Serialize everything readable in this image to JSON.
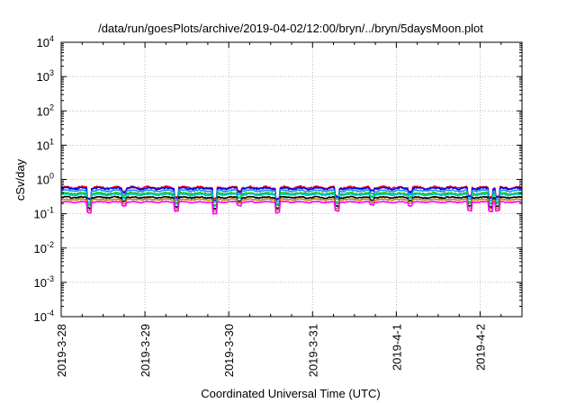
{
  "chart_data": {
    "type": "line",
    "title": "/data/run/goesPlots/archive/2019-04-02/12:00/bryn/../bryn/5daysMoon.plot",
    "xlabel": "Coordinated Universal Time (UTC)",
    "ylabel": "cSv/day",
    "yscale": "log",
    "ylim": [
      0.0001,
      10000
    ],
    "xlim": [
      "2019-03-28 00:00",
      "2019-04-02 12:00"
    ],
    "grid": true,
    "x_ticks": [
      "2019-3-28",
      "2019-3-29",
      "2019-3-30",
      "2019-3-31",
      "2019-4-1",
      "2019-4-2"
    ],
    "y_ticks": [
      {
        "base": "10",
        "exp": "4"
      },
      {
        "base": "10",
        "exp": "3"
      },
      {
        "base": "10",
        "exp": "2"
      },
      {
        "base": "10",
        "exp": "1"
      },
      {
        "base": "10",
        "exp": "0"
      },
      {
        "base": "10",
        "exp": "-1"
      },
      {
        "base": "10",
        "exp": "-2"
      },
      {
        "base": "10",
        "exp": "-3"
      },
      {
        "base": "10",
        "exp": "-4"
      }
    ],
    "series": [
      {
        "color": "#ff0000",
        "level": 0.58,
        "spread": 0.12
      },
      {
        "color": "#0000ff",
        "level": 0.55,
        "spread": 0.1
      },
      {
        "color": "#1e90ff",
        "level": 0.47,
        "spread": 0.09
      },
      {
        "color": "#00c000",
        "level": 0.39,
        "spread": 0.08
      },
      {
        "color": "#00c8c8",
        "level": 0.36,
        "spread": 0.08
      },
      {
        "color": "#000000",
        "level": 0.3,
        "spread": 0.07
      },
      {
        "color": "#b8860b",
        "level": 0.26,
        "spread": 0.06
      },
      {
        "color": "#ff00ff",
        "level": 0.22,
        "spread": 0.06
      }
    ],
    "dips": [
      {
        "x": "2019-03-28 08:00",
        "factor": 0.5
      },
      {
        "x": "2019-03-28 18:00",
        "factor": 0.8
      },
      {
        "x": "2019-03-29 09:00",
        "factor": 0.55
      },
      {
        "x": "2019-03-29 20:00",
        "factor": 0.45
      },
      {
        "x": "2019-03-30 03:00",
        "factor": 0.8
      },
      {
        "x": "2019-03-30 14:00",
        "factor": 0.5
      },
      {
        "x": "2019-03-31 07:00",
        "factor": 0.55
      },
      {
        "x": "2019-03-31 17:00",
        "factor": 0.85
      },
      {
        "x": "2019-04-01 04:00",
        "factor": 0.8
      },
      {
        "x": "2019-04-01 21:00",
        "factor": 0.55
      },
      {
        "x": "2019-04-02 03:00",
        "factor": 0.55
      },
      {
        "x": "2019-04-02 05:00",
        "factor": 0.55
      }
    ]
  }
}
